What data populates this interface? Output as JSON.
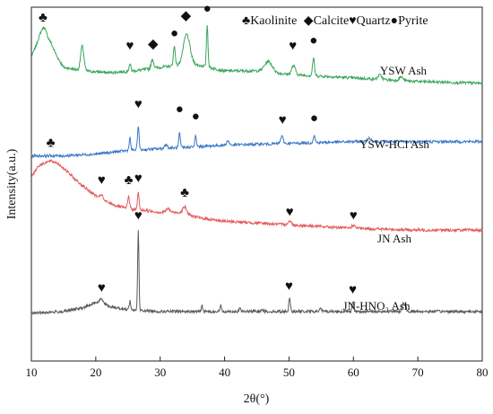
{
  "chart_data": {
    "type": "line",
    "title": "",
    "xlabel": "2θ(°)",
    "ylabel": "Intensity(a.u.)",
    "xlim": [
      10,
      80
    ],
    "xticks": [
      10,
      20,
      30,
      40,
      50,
      60,
      70,
      80
    ],
    "grid": false,
    "y_tick_labels": false,
    "legend": {
      "placement": "top-right",
      "items": [
        {
          "symbol": "♣",
          "label": "Kaolinite"
        },
        {
          "symbol": "◆",
          "label": "Calcite"
        },
        {
          "symbol": "♥",
          "label": "Quartz"
        },
        {
          "symbol": "●",
          "label": "Pyrite"
        }
      ]
    },
    "series": [
      {
        "name": "YSW Ash",
        "color": "#3aa65c",
        "baseline": [
          [
            10,
            0.86
          ],
          [
            11,
            0.9
          ],
          [
            12,
            0.92
          ],
          [
            13,
            0.9
          ],
          [
            14,
            0.86
          ],
          [
            15,
            0.83
          ],
          [
            18,
            0.82
          ],
          [
            22,
            0.815
          ],
          [
            26,
            0.82
          ],
          [
            30,
            0.83
          ],
          [
            35,
            0.84
          ],
          [
            40,
            0.82
          ],
          [
            45,
            0.82
          ],
          [
            50,
            0.81
          ],
          [
            55,
            0.805
          ],
          [
            60,
            0.8
          ],
          [
            70,
            0.79
          ],
          [
            80,
            0.785
          ]
        ],
        "peaks": [
          [
            11.8,
            0.025,
            0.5
          ],
          [
            17.9,
            0.07,
            0.25
          ],
          [
            25.3,
            0.02,
            0.15
          ],
          [
            28.8,
            0.025,
            0.2
          ],
          [
            32.2,
            0.055,
            0.15
          ],
          [
            34.1,
            0.085,
            0.5
          ],
          [
            37.3,
            0.12,
            0.12
          ],
          [
            46.8,
            0.03,
            0.6
          ],
          [
            50.7,
            0.025,
            0.3
          ],
          [
            53.8,
            0.05,
            0.15
          ],
          [
            64.1,
            0.012,
            0.3
          ],
          [
            67.4,
            0.01,
            0.3
          ]
        ],
        "label": "YSW Ash"
      },
      {
        "name": "YSW-HCl Ash",
        "color": "#3b78c6",
        "baseline": [
          [
            10,
            0.58
          ],
          [
            15,
            0.58
          ],
          [
            20,
            0.585
          ],
          [
            25,
            0.595
          ],
          [
            30,
            0.6
          ],
          [
            35,
            0.605
          ],
          [
            40,
            0.61
          ],
          [
            50,
            0.615
          ],
          [
            60,
            0.62
          ],
          [
            70,
            0.62
          ],
          [
            80,
            0.62
          ]
        ],
        "peaks": [
          [
            25.3,
            0.035,
            0.12
          ],
          [
            26.6,
            0.07,
            0.12
          ],
          [
            30.9,
            0.012,
            0.2
          ],
          [
            33.0,
            0.04,
            0.12
          ],
          [
            35.5,
            0.03,
            0.12
          ],
          [
            40.5,
            0.012,
            0.2
          ],
          [
            48.9,
            0.02,
            0.2
          ],
          [
            53.9,
            0.02,
            0.15
          ],
          [
            62.5,
            0.01,
            0.3
          ]
        ],
        "label": "YSW-HCl Ash"
      },
      {
        "name": "JN Ash",
        "color": "#e35b5b",
        "baseline": [
          [
            10,
            0.52
          ],
          [
            11,
            0.55
          ],
          [
            12,
            0.56
          ],
          [
            13,
            0.565
          ],
          [
            14,
            0.56
          ],
          [
            15,
            0.545
          ],
          [
            17,
            0.51
          ],
          [
            19,
            0.48
          ],
          [
            21,
            0.455
          ],
          [
            23,
            0.44
          ],
          [
            25,
            0.43
          ],
          [
            28,
            0.425
          ],
          [
            30,
            0.42
          ],
          [
            33,
            0.42
          ],
          [
            36,
            0.405
          ],
          [
            40,
            0.395
          ],
          [
            45,
            0.39
          ],
          [
            50,
            0.385
          ],
          [
            55,
            0.38
          ],
          [
            60,
            0.375
          ],
          [
            70,
            0.37
          ],
          [
            80,
            0.37
          ]
        ],
        "peaks": [
          [
            20.9,
            0.015,
            0.2
          ],
          [
            25.1,
            0.035,
            0.15
          ],
          [
            26.6,
            0.05,
            0.12
          ],
          [
            31.2,
            0.01,
            0.3
          ],
          [
            33.8,
            0.02,
            0.3
          ],
          [
            50.1,
            0.01,
            0.3
          ],
          [
            60.0,
            0.008,
            0.3
          ]
        ],
        "label": "JN Ash"
      },
      {
        "name": "JN-HNO3 Ash",
        "color": "#5a5a5a",
        "baseline": [
          [
            10,
            0.135
          ],
          [
            15,
            0.14
          ],
          [
            18,
            0.15
          ],
          [
            20,
            0.165
          ],
          [
            21,
            0.165
          ],
          [
            22,
            0.155
          ],
          [
            25,
            0.145
          ],
          [
            30,
            0.14
          ],
          [
            40,
            0.14
          ],
          [
            50,
            0.14
          ],
          [
            60,
            0.14
          ],
          [
            70,
            0.14
          ],
          [
            80,
            0.14
          ]
        ],
        "peaks": [
          [
            20.9,
            0.01,
            0.3
          ],
          [
            25.3,
            0.025,
            0.12
          ],
          [
            26.6,
            0.225,
            0.1
          ],
          [
            36.5,
            0.015,
            0.12
          ],
          [
            39.4,
            0.015,
            0.12
          ],
          [
            42.4,
            0.01,
            0.12
          ],
          [
            45.8,
            0.008,
            0.15
          ],
          [
            50.1,
            0.04,
            0.12
          ],
          [
            54.9,
            0.01,
            0.15
          ],
          [
            59.9,
            0.03,
            0.12
          ],
          [
            67.7,
            0.025,
            0.15
          ],
          [
            68.1,
            0.02,
            0.12
          ]
        ],
        "label": "JN-HNO₃ Ash"
      }
    ],
    "annotations": [
      {
        "symbol": "♣",
        "x": 11.8,
        "y": 0.96
      },
      {
        "symbol": "♥",
        "x": 25.3,
        "y": 0.88
      },
      {
        "symbol": "◆",
        "x": 28.9,
        "y": 0.885
      },
      {
        "symbol": "●",
        "x": 32.2,
        "y": 0.915
      },
      {
        "symbol": "◆",
        "x": 34.0,
        "y": 0.965
      },
      {
        "symbol": "●",
        "x": 37.3,
        "y": 0.985
      },
      {
        "symbol": "♥",
        "x": 50.6,
        "y": 0.88
      },
      {
        "symbol": "●",
        "x": 53.8,
        "y": 0.895
      },
      {
        "symbol": "♥",
        "x": 26.6,
        "y": 0.715
      },
      {
        "symbol": "●",
        "x": 33.0,
        "y": 0.7
      },
      {
        "symbol": "●",
        "x": 35.5,
        "y": 0.68
      },
      {
        "symbol": "♥",
        "x": 49.0,
        "y": 0.67
      },
      {
        "symbol": "●",
        "x": 53.9,
        "y": 0.675
      },
      {
        "symbol": "♣",
        "x": 13.0,
        "y": 0.605
      },
      {
        "symbol": "♥",
        "x": 20.9,
        "y": 0.5
      },
      {
        "symbol": "♣",
        "x": 25.1,
        "y": 0.5
      },
      {
        "symbol": "♥",
        "x": 26.6,
        "y": 0.505
      },
      {
        "symbol": "♣",
        "x": 33.8,
        "y": 0.465
      },
      {
        "symbol": "♥",
        "x": 50.1,
        "y": 0.41
      },
      {
        "symbol": "♥",
        "x": 60.0,
        "y": 0.4
      },
      {
        "symbol": "♥",
        "x": 26.6,
        "y": 0.4
      },
      {
        "symbol": "♥",
        "x": 20.9,
        "y": 0.195
      },
      {
        "symbol": "♥",
        "x": 50.0,
        "y": 0.2
      },
      {
        "symbol": "♥",
        "x": 59.9,
        "y": 0.19
      }
    ]
  }
}
